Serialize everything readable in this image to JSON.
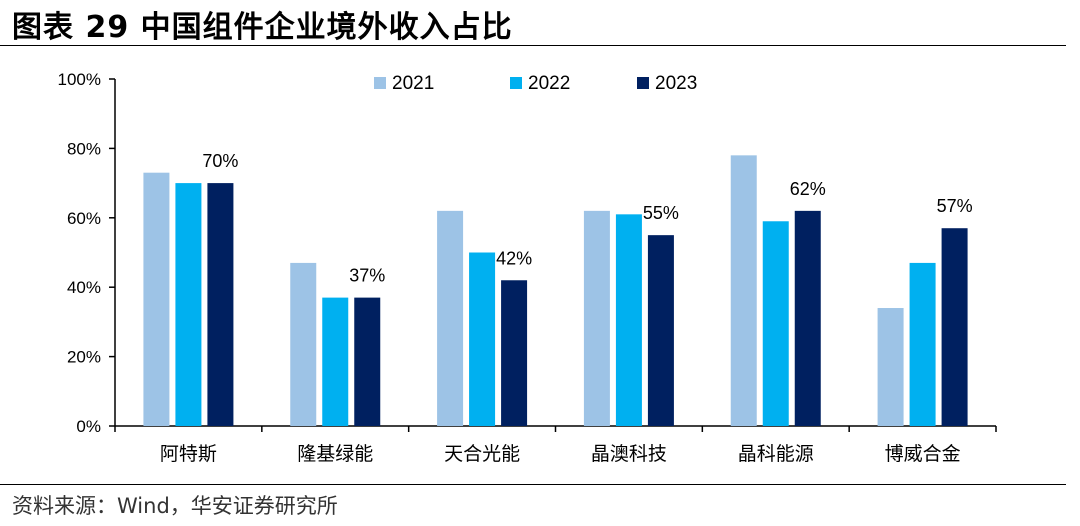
{
  "header": {
    "title": "图表 29 中国组件企业境外收入占比"
  },
  "footer": {
    "source": "资料来源：Wind，华安证券研究所"
  },
  "colors": {
    "2021": "#9dc3e6",
    "2022": "#00b0f0",
    "2023": "#002060"
  },
  "chart_data": {
    "type": "bar",
    "title": "中国组件企业境外收入占比",
    "xlabel": "",
    "ylabel": "",
    "ylim": [
      0,
      100
    ],
    "yticks": [
      "0%",
      "20%",
      "40%",
      "60%",
      "80%",
      "100%"
    ],
    "legend_position": "top-center",
    "grid": false,
    "categories": [
      "阿特斯",
      "隆基绿能",
      "天合光能",
      "晶澳科技",
      "晶科能源",
      "博威合金"
    ],
    "series": [
      {
        "name": "2021",
        "values": [
          73,
          47,
          62,
          62,
          78,
          34
        ]
      },
      {
        "name": "2022",
        "values": [
          70,
          37,
          50,
          61,
          59,
          47
        ]
      },
      {
        "name": "2023",
        "values": [
          70,
          37,
          42,
          55,
          62,
          57
        ]
      }
    ],
    "data_labels": [
      {
        "series": "2023",
        "category": "阿特斯",
        "text": "70%"
      },
      {
        "series": "2023",
        "category": "隆基绿能",
        "text": "37%"
      },
      {
        "series": "2023",
        "category": "天合光能",
        "text": "42%"
      },
      {
        "series": "2023",
        "category": "晶澳科技",
        "text": "55%"
      },
      {
        "series": "2023",
        "category": "晶科能源",
        "text": "62%"
      },
      {
        "series": "2023",
        "category": "博威合金",
        "text": "57%"
      }
    ]
  }
}
